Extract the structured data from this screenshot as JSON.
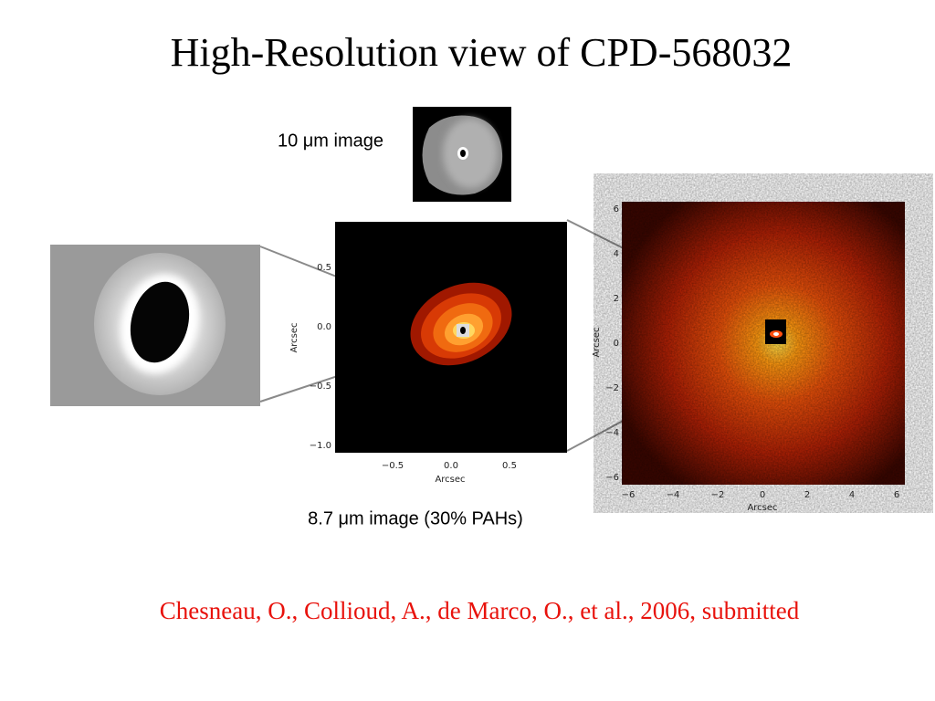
{
  "title": "High-Resolution view of CPD-568032",
  "label_10um": "10 μm image",
  "label_87um": "8.7 μm image (30% PAHs)",
  "citation": "Chesneau, O., Collioud, A., de Marco, O., et al., 2006, submitted",
  "middle_panel": {
    "x_axis_label": "Arcsec",
    "y_axis_label": "Arcsec",
    "x_ticks": [
      "−0.5",
      "0.0",
      "0.5"
    ],
    "y_ticks": [
      "0.5",
      "0.0",
      "−0.5",
      "−1.0"
    ]
  },
  "right_panel": {
    "x_axis_label": "Arcsec",
    "y_axis_label": "Arcsec",
    "x_ticks": [
      "−6",
      "−4",
      "−2",
      "0",
      "2",
      "4",
      "6"
    ],
    "y_ticks": [
      "6",
      "4",
      "2",
      "0",
      "−2",
      "−4",
      "−6"
    ]
  }
}
